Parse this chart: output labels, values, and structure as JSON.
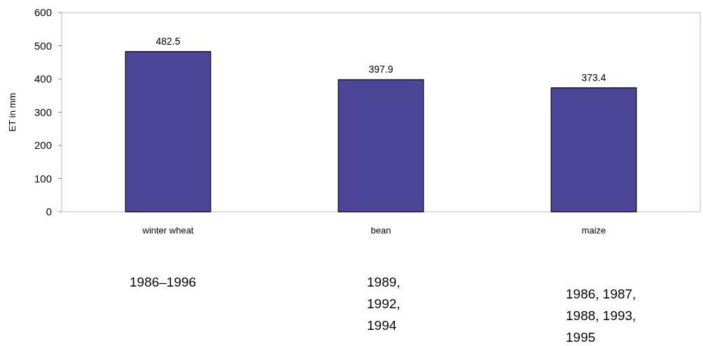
{
  "chart_data": {
    "type": "bar",
    "ylabel": "ET in mm",
    "categories": [
      "winter wheat",
      "bean",
      "maize"
    ],
    "values": [
      482.5,
      397.9,
      373.4
    ],
    "color": "#4b4697",
    "ylim": [
      0,
      600
    ],
    "yticks": [
      0,
      100,
      200,
      300,
      400,
      500,
      600
    ],
    "grid": false,
    "data_labels": true,
    "annotations": [
      "1986–1996",
      "1989,\n1992,\n1994",
      "1986, 1987,\n1988, 1993,\n1995"
    ]
  }
}
